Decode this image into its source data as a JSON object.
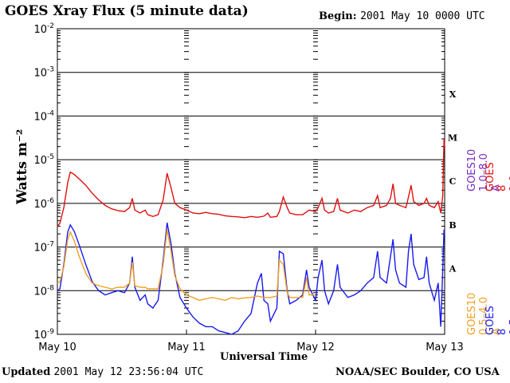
{
  "header": {
    "title": "GOES Xray Flux (5 minute data)",
    "begin_label": "Begin:",
    "begin_value": "2001 May 10 0000 UTC"
  },
  "footer": {
    "updated_label": "Updated",
    "updated_value": "2001 May 12 23:56:04 UTC",
    "credit": "NOAA/SEC Boulder, CO USA"
  },
  "chart_data": {
    "type": "line",
    "title": "GOES Xray Flux (5 minute data)",
    "xlabel": "Universal Time",
    "ylabel": "Watts m⁻²",
    "y_scale": "log",
    "ylim": [
      1e-09,
      0.01
    ],
    "y_ticks": [
      {
        "exp": "-9"
      },
      {
        "exp": "-8"
      },
      {
        "exp": "-7"
      },
      {
        "exp": "-6"
      },
      {
        "exp": "-5"
      },
      {
        "exp": "-4"
      },
      {
        "exp": "-3"
      },
      {
        "exp": "-2"
      }
    ],
    "y_tick_base": "10",
    "x_ticks": [
      "May 10",
      "May 11",
      "May 12",
      "May 13"
    ],
    "xlim": [
      "2001-05-10 00:00",
      "2001-05-13 00:00"
    ],
    "flare_classes": [
      {
        "label": "A",
        "flux": 1e-08
      },
      {
        "label": "B",
        "flux": 1e-07
      },
      {
        "label": "C",
        "flux": 1e-06
      },
      {
        "label": "M",
        "flux": 1e-05
      },
      {
        "label": "X",
        "flux": 0.0001
      }
    ],
    "grid": "horizontal at each decade 1e-8 to 1e-3",
    "legend_placement": "right, vertical",
    "series": [
      {
        "name": "GOES 8 1.0-8.0 A",
        "color": "#e01010",
        "points": [
          [
            0.0,
            3e-07
          ],
          [
            0.02,
            3.5e-07
          ],
          [
            0.05,
            8e-07
          ],
          [
            0.08,
            3e-06
          ],
          [
            0.1,
            5.2e-06
          ],
          [
            0.13,
            4.6e-06
          ],
          [
            0.17,
            3.6e-06
          ],
          [
            0.22,
            2.6e-06
          ],
          [
            0.27,
            1.7e-06
          ],
          [
            0.32,
            1.2e-06
          ],
          [
            0.37,
            9e-07
          ],
          [
            0.42,
            7.5e-07
          ],
          [
            0.47,
            6.8e-07
          ],
          [
            0.52,
            6.5e-07
          ],
          [
            0.56,
            8e-07
          ],
          [
            0.58,
            1.3e-06
          ],
          [
            0.6,
            7e-07
          ],
          [
            0.64,
            6e-07
          ],
          [
            0.68,
            7e-07
          ],
          [
            0.7,
            5.5e-07
          ],
          [
            0.74,
            5e-07
          ],
          [
            0.78,
            5.5e-07
          ],
          [
            0.82,
            1.2e-06
          ],
          [
            0.85,
            4.9e-06
          ],
          [
            0.88,
            2.3e-06
          ],
          [
            0.91,
            1e-06
          ],
          [
            0.95,
            8e-07
          ],
          [
            1.0,
            7e-07
          ],
          [
            1.05,
            6e-07
          ],
          [
            1.1,
            5.8e-07
          ],
          [
            1.15,
            6.2e-07
          ],
          [
            1.2,
            5.8e-07
          ],
          [
            1.25,
            5.6e-07
          ],
          [
            1.3,
            5.2e-07
          ],
          [
            1.35,
            5e-07
          ],
          [
            1.4,
            4.9e-07
          ],
          [
            1.45,
            4.7e-07
          ],
          [
            1.5,
            5e-07
          ],
          [
            1.55,
            4.8e-07
          ],
          [
            1.6,
            5.1e-07
          ],
          [
            1.63,
            6e-07
          ],
          [
            1.65,
            4.8e-07
          ],
          [
            1.7,
            5e-07
          ],
          [
            1.72,
            6.5e-07
          ],
          [
            1.75,
            1.4e-06
          ],
          [
            1.78,
            8e-07
          ],
          [
            1.8,
            6e-07
          ],
          [
            1.85,
            5.5e-07
          ],
          [
            1.9,
            5.5e-07
          ],
          [
            1.95,
            7e-07
          ],
          [
            2.0,
            6.5e-07
          ],
          [
            2.02,
            8e-07
          ],
          [
            2.05,
            1.3e-06
          ],
          [
            2.07,
            7e-07
          ],
          [
            2.1,
            6e-07
          ],
          [
            2.14,
            6.5e-07
          ],
          [
            2.17,
            1.3e-06
          ],
          [
            2.19,
            7e-07
          ],
          [
            2.25,
            6e-07
          ],
          [
            2.3,
            7e-07
          ],
          [
            2.35,
            6.5e-07
          ],
          [
            2.4,
            8e-07
          ],
          [
            2.45,
            9e-07
          ],
          [
            2.48,
            1.5e-06
          ],
          [
            2.5,
            8e-07
          ],
          [
            2.55,
            9e-07
          ],
          [
            2.58,
            1.3e-06
          ],
          [
            2.6,
            2.8e-06
          ],
          [
            2.62,
            1e-06
          ],
          [
            2.65,
            9e-07
          ],
          [
            2.7,
            8e-07
          ],
          [
            2.72,
            1.4e-06
          ],
          [
            2.74,
            2.6e-06
          ],
          [
            2.76,
            1.1e-06
          ],
          [
            2.8,
            9e-07
          ],
          [
            2.84,
            1e-06
          ],
          [
            2.86,
            1.3e-06
          ],
          [
            2.88,
            9e-07
          ],
          [
            2.92,
            8e-07
          ],
          [
            2.95,
            1.1e-06
          ],
          [
            2.97,
            6e-07
          ],
          [
            2.985,
            1.5e-06
          ],
          [
            2.995,
            3e-05
          ],
          [
            3.0,
            2e-05
          ]
        ]
      },
      {
        "name": "GOES 8 0.5-4.0 A",
        "color": "#1a1aee",
        "points": [
          [
            0.0,
            1e-08
          ],
          [
            0.02,
            1.1e-08
          ],
          [
            0.05,
            4e-08
          ],
          [
            0.08,
            2.2e-07
          ],
          [
            0.1,
            3.2e-07
          ],
          [
            0.13,
            2.3e-07
          ],
          [
            0.17,
            1.1e-07
          ],
          [
            0.22,
            4e-08
          ],
          [
            0.27,
            1.6e-08
          ],
          [
            0.32,
            1e-08
          ],
          [
            0.37,
            8e-09
          ],
          [
            0.42,
            9e-09
          ],
          [
            0.47,
            1e-08
          ],
          [
            0.52,
            9e-09
          ],
          [
            0.56,
            1.5e-08
          ],
          [
            0.58,
            6e-08
          ],
          [
            0.6,
            1.2e-08
          ],
          [
            0.64,
            6e-09
          ],
          [
            0.68,
            8e-09
          ],
          [
            0.7,
            5e-09
          ],
          [
            0.74,
            4e-09
          ],
          [
            0.78,
            6e-09
          ],
          [
            0.82,
            5e-08
          ],
          [
            0.85,
            3.6e-07
          ],
          [
            0.88,
            1.2e-07
          ],
          [
            0.91,
            2.5e-08
          ],
          [
            0.95,
            7e-09
          ],
          [
            1.0,
            4e-09
          ],
          [
            1.05,
            2.5e-09
          ],
          [
            1.1,
            1.8e-09
          ],
          [
            1.15,
            1.5e-09
          ],
          [
            1.2,
            1.5e-09
          ],
          [
            1.25,
            1.2e-09
          ],
          [
            1.3,
            1.1e-09
          ],
          [
            1.35,
            1e-09
          ],
          [
            1.4,
            1.2e-09
          ],
          [
            1.45,
            2e-09
          ],
          [
            1.5,
            3e-09
          ],
          [
            1.53,
            8e-09
          ],
          [
            1.55,
            1.5e-08
          ],
          [
            1.58,
            2.5e-08
          ],
          [
            1.6,
            6e-09
          ],
          [
            1.63,
            5e-09
          ],
          [
            1.65,
            2e-09
          ],
          [
            1.7,
            4e-09
          ],
          [
            1.72,
            8e-08
          ],
          [
            1.75,
            7e-08
          ],
          [
            1.78,
            1e-08
          ],
          [
            1.8,
            5e-09
          ],
          [
            1.85,
            6e-09
          ],
          [
            1.9,
            8e-09
          ],
          [
            1.93,
            3e-08
          ],
          [
            1.95,
            1.2e-08
          ],
          [
            2.0,
            6e-09
          ],
          [
            2.02,
            2e-08
          ],
          [
            2.05,
            5e-08
          ],
          [
            2.07,
            1e-08
          ],
          [
            2.1,
            5e-09
          ],
          [
            2.14,
            1e-08
          ],
          [
            2.17,
            4e-08
          ],
          [
            2.19,
            1.2e-08
          ],
          [
            2.25,
            7e-09
          ],
          [
            2.3,
            8e-09
          ],
          [
            2.35,
            1e-08
          ],
          [
            2.4,
            1.5e-08
          ],
          [
            2.45,
            2e-08
          ],
          [
            2.48,
            8e-08
          ],
          [
            2.5,
            2e-08
          ],
          [
            2.55,
            1.5e-08
          ],
          [
            2.58,
            6e-08
          ],
          [
            2.6,
            1.5e-07
          ],
          [
            2.62,
            3e-08
          ],
          [
            2.65,
            1.5e-08
          ],
          [
            2.7,
            1.2e-08
          ],
          [
            2.72,
            8e-08
          ],
          [
            2.74,
            2e-07
          ],
          [
            2.76,
            4e-08
          ],
          [
            2.8,
            1.8e-08
          ],
          [
            2.84,
            2e-08
          ],
          [
            2.86,
            6e-08
          ],
          [
            2.88,
            1.5e-08
          ],
          [
            2.92,
            6e-09
          ],
          [
            2.95,
            1.5e-08
          ],
          [
            2.97,
            1.5e-09
          ],
          [
            2.985,
            3e-08
          ],
          [
            2.995,
            2.5e-07
          ],
          [
            3.0,
            2e-07
          ]
        ]
      },
      {
        "name": "GOES10 1.0-8.0 A",
        "color": "#7a2ac8",
        "points": []
      },
      {
        "name": "GOES10 0.5-4.0 A",
        "color": "#f0a020",
        "points": [
          [
            0.0,
            1.5e-08
          ],
          [
            0.02,
            1.6e-08
          ],
          [
            0.05,
            3.5e-08
          ],
          [
            0.08,
            1.5e-07
          ],
          [
            0.1,
            2.2e-07
          ],
          [
            0.13,
            1.4e-07
          ],
          [
            0.17,
            6e-08
          ],
          [
            0.22,
            2.5e-08
          ],
          [
            0.27,
            1.5e-08
          ],
          [
            0.32,
            1.3e-08
          ],
          [
            0.37,
            1.2e-08
          ],
          [
            0.42,
            1.1e-08
          ],
          [
            0.47,
            1.2e-08
          ],
          [
            0.52,
            1.2e-08
          ],
          [
            0.56,
            1.5e-08
          ],
          [
            0.58,
            4.5e-08
          ],
          [
            0.6,
            1.3e-08
          ],
          [
            0.64,
            1.2e-08
          ],
          [
            0.68,
            1.2e-08
          ],
          [
            0.7,
            1.1e-08
          ],
          [
            0.74,
            1.1e-08
          ],
          [
            0.78,
            1.1e-08
          ],
          [
            0.82,
            4e-08
          ],
          [
            0.85,
            2.5e-07
          ],
          [
            0.88,
            8e-08
          ],
          [
            0.91,
            2.2e-08
          ],
          [
            0.95,
            1.1e-08
          ],
          [
            1.0,
            8e-09
          ],
          [
            1.05,
            7e-09
          ],
          [
            1.1,
            6e-09
          ],
          [
            1.15,
            6.5e-09
          ],
          [
            1.2,
            7e-09
          ],
          [
            1.25,
            6.5e-09
          ],
          [
            1.3,
            6e-09
          ],
          [
            1.35,
            7e-09
          ],
          [
            1.4,
            6.5e-09
          ],
          [
            1.45,
            6.8e-09
          ],
          [
            1.5,
            7e-09
          ],
          [
            1.55,
            7.5e-09
          ],
          [
            1.6,
            7e-09
          ],
          [
            1.65,
            7e-09
          ],
          [
            1.7,
            7.5e-09
          ],
          [
            1.72,
            5e-08
          ],
          [
            1.75,
            4e-08
          ],
          [
            1.78,
            9e-09
          ],
          [
            1.8,
            7e-09
          ],
          [
            1.85,
            7e-09
          ],
          [
            1.9,
            7e-09
          ],
          [
            1.93,
            2e-08
          ],
          [
            1.95,
            8e-09
          ],
          [
            2.0,
            8e-09
          ]
        ]
      }
    ]
  },
  "legend_left": [
    {
      "text": "GOES10 1.0–8.0 A",
      "color": "#7a2ac8"
    },
    {
      "text": "GOES10 0.5–4.0 A",
      "color": "#f0a020"
    }
  ],
  "legend_right": [
    {
      "text": "GOES 8 1.0–8.0 A",
      "color": "#e01010"
    },
    {
      "text": "GOES 8 0.5–4.0 A",
      "color": "#1a1aee"
    }
  ]
}
